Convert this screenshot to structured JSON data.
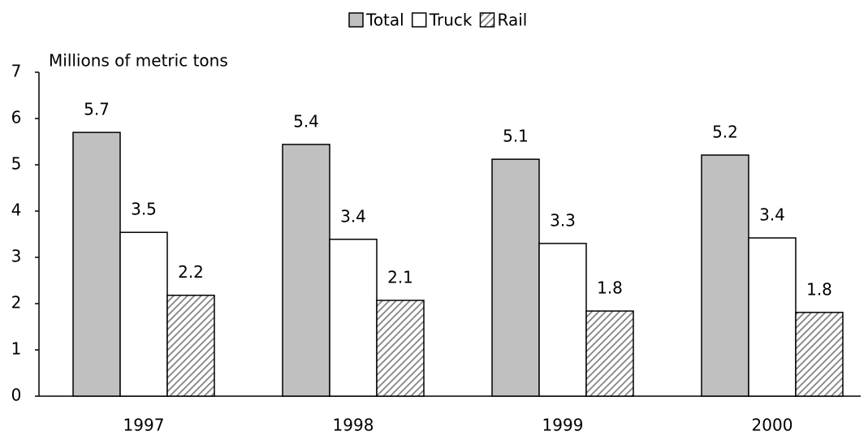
{
  "chart_data": {
    "type": "bar",
    "y_label": "Millions of metric tons",
    "categories": [
      "1997",
      "1998",
      "1999",
      "2000"
    ],
    "series": [
      {
        "name": "Total",
        "color": "#c0c0c0",
        "values": [
          5.7,
          5.44,
          5.12,
          5.21
        ],
        "value_labels": [
          "5.7",
          "5.4",
          "5.1",
          "5.2"
        ]
      },
      {
        "name": "Truck",
        "color": "#ffffff",
        "values": [
          3.54,
          3.39,
          3.3,
          3.42
        ],
        "value_labels": [
          "3.5",
          "3.4",
          "3.3",
          "3.4"
        ]
      },
      {
        "name": "Rail",
        "color": "#808080",
        "hatch": true,
        "values": [
          2.18,
          2.07,
          1.84,
          1.81
        ],
        "value_labels": [
          "2.2",
          "2.1",
          "1.8",
          "1.8"
        ]
      }
    ],
    "ylim": [
      0,
      7
    ],
    "yticks": [
      0,
      1,
      2,
      3,
      4,
      5,
      6,
      7
    ],
    "grid": false,
    "legend": "top"
  }
}
